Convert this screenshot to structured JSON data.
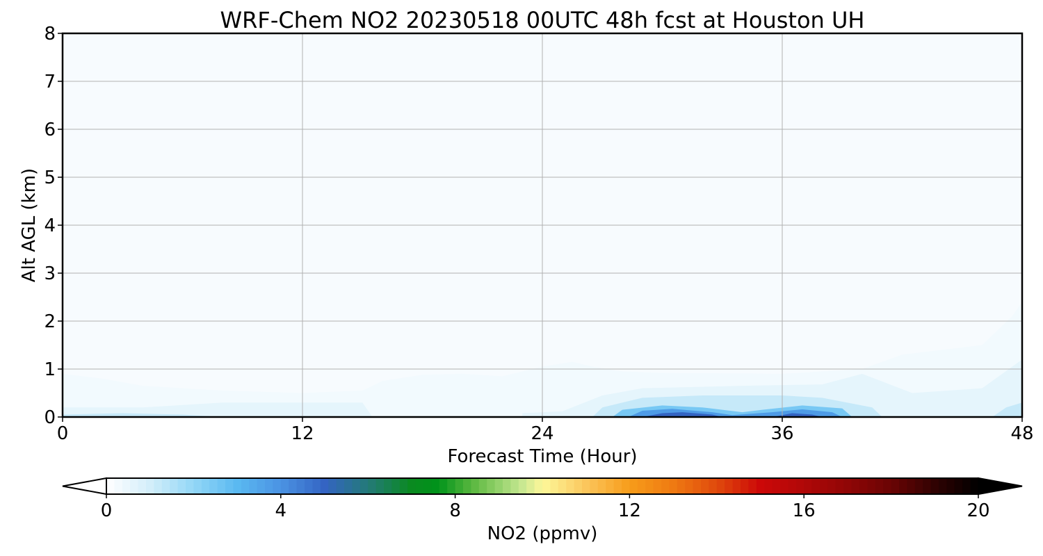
{
  "chart_data": {
    "type": "heatmap",
    "title": "WRF-Chem NO2  20230518 00UTC 48h fcst at Houston UH",
    "xlabel": "Forecast Time (Hour)",
    "ylabel": "Alt AGL (km)",
    "xlim": [
      0,
      48
    ],
    "ylim": [
      0,
      8
    ],
    "x_ticks": [
      "0",
      "12",
      "24",
      "36",
      "48"
    ],
    "y_ticks": [
      "0",
      "1",
      "2",
      "3",
      "4",
      "5",
      "6",
      "7",
      "8"
    ],
    "grid": true,
    "colorbar": {
      "label": "NO2  (ppmv)",
      "range": [
        0,
        20
      ],
      "ticks": [
        "0",
        "4",
        "8",
        "12",
        "16",
        "20"
      ],
      "extend": "both",
      "colors": [
        {
          "v": 0,
          "c": "#ffffff"
        },
        {
          "v": 1,
          "c": "#d3eefa"
        },
        {
          "v": 2,
          "c": "#93d7f7"
        },
        {
          "v": 3,
          "c": "#5ab9f1"
        },
        {
          "v": 4,
          "c": "#4b93e3"
        },
        {
          "v": 5,
          "c": "#3464c3"
        },
        {
          "v": 6,
          "c": "#247a78"
        },
        {
          "v": 7,
          "c": "#0a8a20"
        },
        {
          "v": 7.6,
          "c": "#00931a"
        },
        {
          "v": 8.4,
          "c": "#5bb840"
        },
        {
          "v": 9.5,
          "c": "#c4e790"
        },
        {
          "v": 10,
          "c": "#fdf79a"
        },
        {
          "v": 11,
          "c": "#fbc65c"
        },
        {
          "v": 12,
          "c": "#f79c1a"
        },
        {
          "v": 13,
          "c": "#ef7a12"
        },
        {
          "v": 14,
          "c": "#e04a0c"
        },
        {
          "v": 15,
          "c": "#cc0808"
        },
        {
          "v": 16,
          "c": "#b00808"
        },
        {
          "v": 17,
          "c": "#900606"
        },
        {
          "v": 18,
          "c": "#6a0404"
        },
        {
          "v": 19,
          "c": "#300202"
        },
        {
          "v": 20,
          "c": "#000000"
        }
      ]
    },
    "background_color": "#f7fbfe",
    "contours": [
      {
        "value": 0.3,
        "points": [
          [
            0,
            0
          ],
          [
            0,
            0.9
          ],
          [
            2,
            0.8
          ],
          [
            4,
            0.65
          ],
          [
            8,
            0.55
          ],
          [
            12,
            0.5
          ],
          [
            15,
            0.55
          ],
          [
            16,
            0.75
          ],
          [
            18,
            0.88
          ],
          [
            20,
            0.9
          ],
          [
            22,
            0.85
          ],
          [
            24,
            1.05
          ],
          [
            25.5,
            1.15
          ],
          [
            26.5,
            1.05
          ],
          [
            28,
            0.95
          ],
          [
            30,
            0.92
          ],
          [
            36,
            0.9
          ],
          [
            40,
            1.0
          ],
          [
            42,
            1.3
          ],
          [
            44,
            1.4
          ],
          [
            46,
            1.5
          ],
          [
            47.5,
            2.1
          ],
          [
            48,
            2.4
          ],
          [
            48,
            0
          ]
        ]
      },
      {
        "value": 0.6,
        "points": [
          [
            0,
            0
          ],
          [
            0,
            0.2
          ],
          [
            4,
            0.2
          ],
          [
            8,
            0.3
          ],
          [
            12,
            0.3
          ],
          [
            15,
            0.3
          ],
          [
            15.5,
            0
          ],
          [
            23,
            0
          ],
          [
            23,
            0.08
          ],
          [
            25,
            0.12
          ],
          [
            27,
            0.45
          ],
          [
            29,
            0.6
          ],
          [
            34,
            0.65
          ],
          [
            38,
            0.68
          ],
          [
            40,
            0.9
          ],
          [
            42.5,
            0.5
          ],
          [
            46,
            0.6
          ],
          [
            48,
            1.2
          ],
          [
            48,
            0
          ]
        ]
      },
      {
        "value": 1.2,
        "points": [
          [
            0,
            0
          ],
          [
            0,
            0.05
          ],
          [
            3,
            0.08
          ],
          [
            6,
            0.05
          ],
          [
            8,
            0
          ],
          [
            26.5,
            0
          ],
          [
            27,
            0.2
          ],
          [
            29,
            0.4
          ],
          [
            32,
            0.45
          ],
          [
            36,
            0.45
          ],
          [
            38,
            0.4
          ],
          [
            40.5,
            0.2
          ],
          [
            41,
            0
          ],
          [
            46.5,
            0
          ],
          [
            47.2,
            0.2
          ],
          [
            48,
            0.3
          ],
          [
            48,
            0
          ]
        ]
      },
      {
        "value": 2.5,
        "points": [
          [
            27.5,
            0
          ],
          [
            28,
            0.15
          ],
          [
            30,
            0.24
          ],
          [
            32,
            0.2
          ],
          [
            34,
            0.1
          ],
          [
            35,
            0.15
          ],
          [
            37,
            0.24
          ],
          [
            39,
            0.18
          ],
          [
            39.5,
            0
          ]
        ]
      },
      {
        "value": 3.8,
        "points": [
          [
            28.3,
            0
          ],
          [
            29,
            0.13
          ],
          [
            30.5,
            0.17
          ],
          [
            32.5,
            0.1
          ],
          [
            33.5,
            0.04
          ],
          [
            35.5,
            0.1
          ],
          [
            37,
            0.16
          ],
          [
            38.5,
            0.1
          ],
          [
            39,
            0
          ]
        ]
      },
      {
        "value": 5.0,
        "points": [
          [
            29,
            0
          ],
          [
            30,
            0.08
          ],
          [
            31,
            0.1
          ],
          [
            32.5,
            0.05
          ],
          [
            33,
            0
          ],
          [
            35.5,
            0
          ],
          [
            36.5,
            0.08
          ],
          [
            37.5,
            0.05
          ],
          [
            38,
            0
          ]
        ]
      }
    ]
  }
}
